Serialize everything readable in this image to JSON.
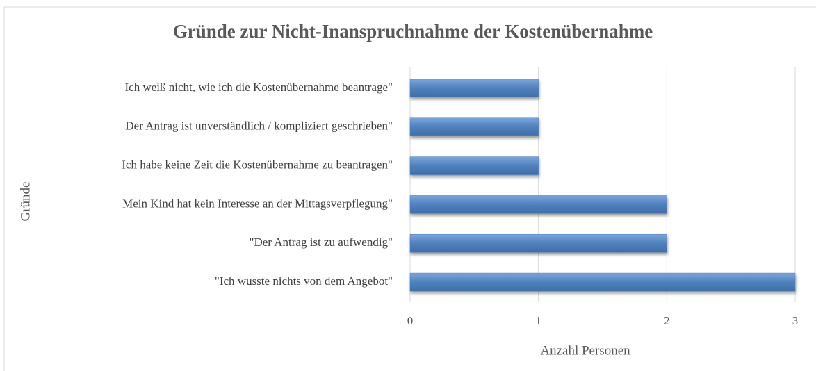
{
  "chart_data": {
    "type": "barh",
    "title": "Gründe zur Nicht-Inanspruchnahme der Kostenübernahme",
    "categories": [
      "Ich weiß nicht, wie ich die Kostenübernahme beantrage\"",
      "Der Antrag ist unverständlich / kompliziert geschrieben\"",
      "Ich habe keine Zeit die Kostenübernahme zu beantragen\"",
      "Mein Kind hat kein Interesse an der Mittagsverpflegung\"",
      "\"Der Antrag ist zu aufwendig\"",
      "\"Ich wusste nichts von dem Angebot\""
    ],
    "values": [
      1,
      1,
      1,
      2,
      2,
      3
    ],
    "color": "#4f81bd",
    "xlim": [
      0,
      3
    ],
    "xticks": [
      0,
      1,
      2,
      3
    ],
    "grid": true,
    "xlabel": "Anzahl Personen",
    "ylabel": "Gründe"
  }
}
